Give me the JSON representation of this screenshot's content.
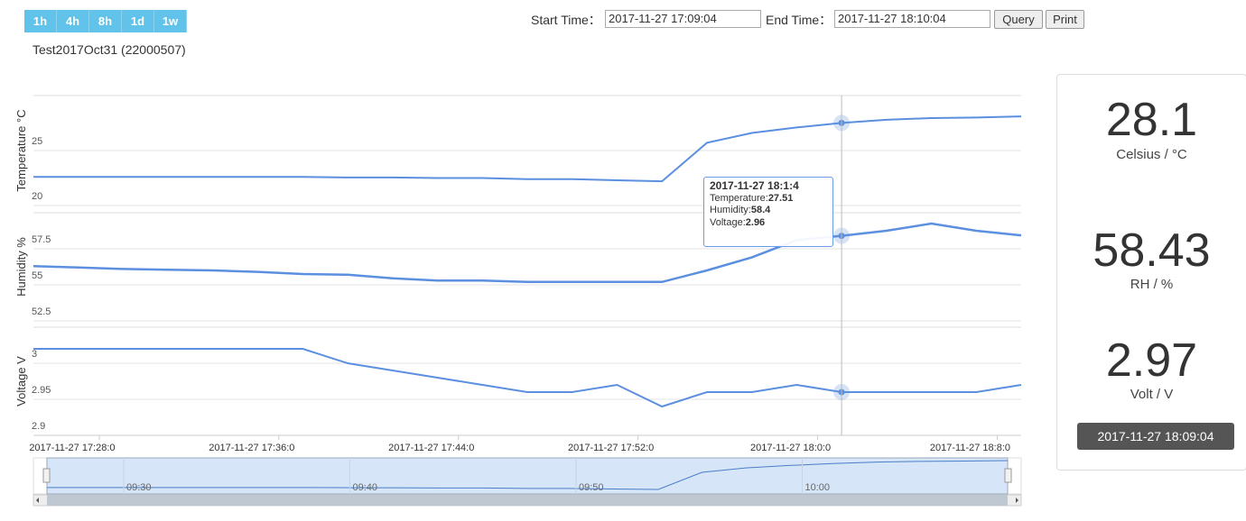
{
  "range_buttons": [
    "1h",
    "4h",
    "8h",
    "1d",
    "1w"
  ],
  "start_label": "Start Time：",
  "start_value": "2017-11-27 17:09:04",
  "end_label": "End Time：",
  "end_value": "2017-11-27 18:10:04",
  "query_button": "Query",
  "print_button": "Print",
  "device_title": "Test2017Oct31 (22000507)",
  "tooltip": {
    "title": "2017-11-27 18:1:4",
    "index": 18,
    "items": [
      {
        "label": "Temperature:",
        "value": 27.51
      },
      {
        "label": "Humidity:",
        "value": 58.4
      },
      {
        "label": "Voltage:",
        "value": 2.96
      }
    ]
  },
  "readings": [
    {
      "value": "28.1",
      "unit": "Celsius / °C"
    },
    {
      "value": "58.43",
      "unit": "RH / %"
    },
    {
      "value": "2.97",
      "unit": "Volt / V"
    }
  ],
  "reading_time": "2017-11-27 18:09:04",
  "navigator": {
    "labels": [
      "09:30",
      "09:40",
      "09:50",
      "10:00"
    ]
  },
  "chart_data": [
    {
      "type": "line",
      "y_label": "Temperature °C",
      "color": "#5b8fe0",
      "grid": true,
      "x": [
        "2017-11-27 17:25:04",
        "2017-11-27 17:27:04",
        "2017-11-27 17:29:04",
        "2017-11-27 17:31:04",
        "2017-11-27 17:33:04",
        "2017-11-27 17:35:04",
        "2017-11-27 17:37:04",
        "2017-11-27 17:39:04",
        "2017-11-27 17:41:04",
        "2017-11-27 17:43:04",
        "2017-11-27 17:45:04",
        "2017-11-27 17:47:04",
        "2017-11-27 17:49:04",
        "2017-11-27 17:51:04",
        "2017-11-27 17:53:04",
        "2017-11-27 17:55:04",
        "2017-11-27 17:57:04",
        "2017-11-27 17:59:04",
        "2017-11-27 18:01:04",
        "2017-11-27 18:03:04",
        "2017-11-27 18:05:04",
        "2017-11-27 18:07:04",
        "2017-11-27 18:09:04"
      ],
      "values": [
        22.6,
        22.6,
        22.6,
        22.6,
        22.6,
        22.6,
        22.6,
        22.55,
        22.55,
        22.5,
        22.5,
        22.4,
        22.4,
        22.3,
        22.2,
        25.7,
        26.6,
        27.1,
        27.51,
        27.8,
        27.95,
        28.0,
        28.1
      ],
      "xlim": [
        "2017-11-27 17:25:04",
        "2017-11-27 18:09:04"
      ],
      "ylim": [
        20,
        30
      ],
      "yticks": [
        20,
        25
      ]
    },
    {
      "type": "line",
      "y_label": "Humidity %",
      "color": "#5b8fe0",
      "grid": true,
      "x": [
        "2017-11-27 17:25:04",
        "2017-11-27 17:27:04",
        "2017-11-27 17:29:04",
        "2017-11-27 17:31:04",
        "2017-11-27 17:33:04",
        "2017-11-27 17:35:04",
        "2017-11-27 17:37:04",
        "2017-11-27 17:39:04",
        "2017-11-27 17:41:04",
        "2017-11-27 17:43:04",
        "2017-11-27 17:45:04",
        "2017-11-27 17:47:04",
        "2017-11-27 17:49:04",
        "2017-11-27 17:51:04",
        "2017-11-27 17:53:04",
        "2017-11-27 17:55:04",
        "2017-11-27 17:57:04",
        "2017-11-27 17:59:04",
        "2017-11-27 18:01:04",
        "2017-11-27 18:03:04",
        "2017-11-27 18:05:04",
        "2017-11-27 18:07:04",
        "2017-11-27 18:09:04"
      ],
      "values": [
        56.3,
        56.2,
        56.1,
        56.05,
        56.0,
        55.9,
        55.75,
        55.7,
        55.45,
        55.3,
        55.3,
        55.2,
        55.2,
        55.2,
        55.2,
        56.0,
        56.9,
        58.1,
        58.4,
        58.75,
        59.25,
        58.75,
        58.43
      ],
      "xlim": [
        "2017-11-27 17:25:04",
        "2017-11-27 18:09:04"
      ],
      "ylim": [
        52.5,
        60
      ],
      "yticks": [
        52.5,
        55,
        57.5
      ]
    },
    {
      "type": "line",
      "y_label": "Voltage V",
      "color": "#5b8fe0",
      "grid": true,
      "x": [
        "2017-11-27 17:25:04",
        "2017-11-27 17:27:04",
        "2017-11-27 17:29:04",
        "2017-11-27 17:31:04",
        "2017-11-27 17:33:04",
        "2017-11-27 17:35:04",
        "2017-11-27 17:37:04",
        "2017-11-27 17:39:04",
        "2017-11-27 17:41:04",
        "2017-11-27 17:43:04",
        "2017-11-27 17:45:04",
        "2017-11-27 17:47:04",
        "2017-11-27 17:49:04",
        "2017-11-27 17:51:04",
        "2017-11-27 17:53:04",
        "2017-11-27 17:55:04",
        "2017-11-27 17:57:04",
        "2017-11-27 17:59:04",
        "2017-11-27 18:01:04",
        "2017-11-27 18:03:04",
        "2017-11-27 18:05:04",
        "2017-11-27 18:07:04",
        "2017-11-27 18:09:04"
      ],
      "values": [
        3.02,
        3.02,
        3.02,
        3.02,
        3.02,
        3.02,
        3.02,
        3.0,
        2.99,
        2.98,
        2.97,
        2.96,
        2.96,
        2.97,
        2.94,
        2.96,
        2.96,
        2.97,
        2.96,
        2.96,
        2.96,
        2.96,
        2.97
      ],
      "xlim": [
        "2017-11-27 17:25:04",
        "2017-11-27 18:09:04"
      ],
      "ylim": [
        2.9,
        3.05
      ],
      "yticks": [
        2.9,
        2.95,
        3
      ],
      "xticks": [
        {
          "value": "2017-11-27 17:28:00",
          "label": "2017-11-27 17:28:0"
        },
        {
          "value": "2017-11-27 17:36:00",
          "label": "2017-11-27 17:36:0"
        },
        {
          "value": "2017-11-27 17:44:00",
          "label": "2017-11-27 17:44:0"
        },
        {
          "value": "2017-11-27 17:52:00",
          "label": "2017-11-27 17:52:0"
        },
        {
          "value": "2017-11-27 18:00:00",
          "label": "2017-11-27 18:0:0"
        },
        {
          "value": "2017-11-27 18:08:00",
          "label": "2017-11-27 18:8:0"
        }
      ]
    }
  ]
}
